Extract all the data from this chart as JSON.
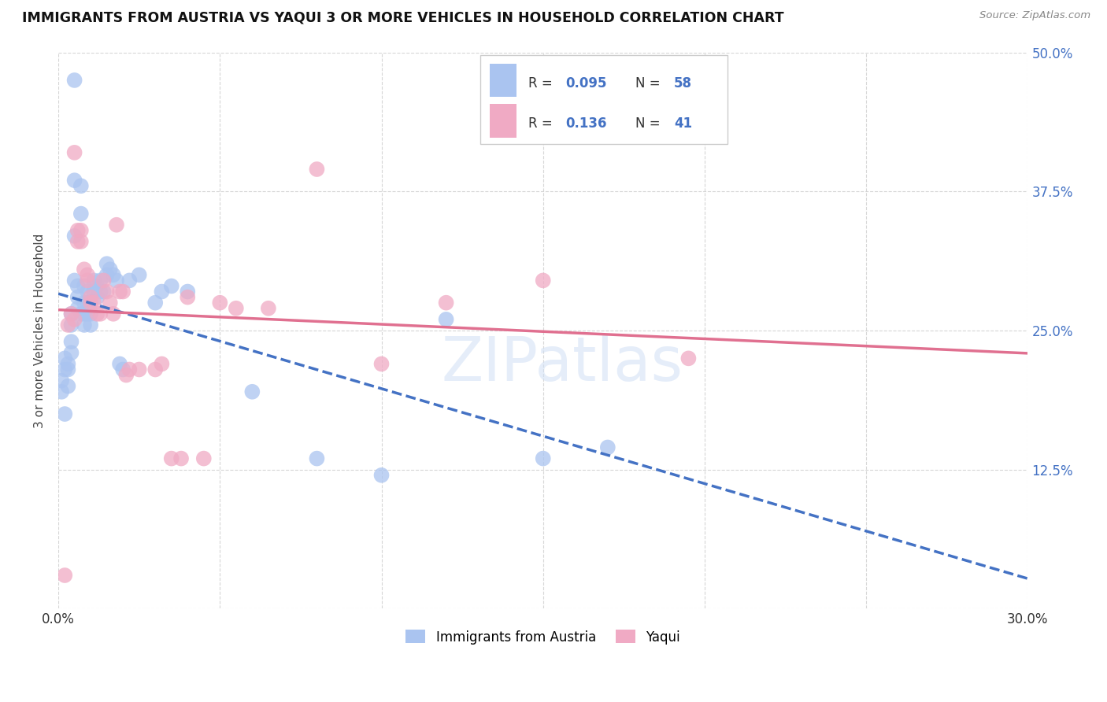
{
  "title": "IMMIGRANTS FROM AUSTRIA VS YAQUI 3 OR MORE VEHICLES IN HOUSEHOLD CORRELATION CHART",
  "source": "Source: ZipAtlas.com",
  "ylabel_label": "3 or more Vehicles in Household",
  "x_min": 0.0,
  "x_max": 0.3,
  "y_min": 0.0,
  "y_max": 0.5,
  "austria_color": "#aac4f0",
  "yaqui_color": "#f0aac4",
  "austria_line_color": "#4472c4",
  "yaqui_line_color": "#e07090",
  "watermark": "ZIPatlas",
  "R_austria": "0.095",
  "N_austria": "58",
  "R_yaqui": "0.136",
  "N_yaqui": "41",
  "austria_x": [
    0.001,
    0.001,
    0.002,
    0.002,
    0.002,
    0.003,
    0.003,
    0.003,
    0.004,
    0.004,
    0.004,
    0.004,
    0.005,
    0.005,
    0.005,
    0.005,
    0.006,
    0.006,
    0.006,
    0.007,
    0.007,
    0.007,
    0.008,
    0.008,
    0.008,
    0.008,
    0.009,
    0.009,
    0.009,
    0.01,
    0.01,
    0.01,
    0.011,
    0.011,
    0.012,
    0.012,
    0.013,
    0.013,
    0.014,
    0.015,
    0.015,
    0.016,
    0.017,
    0.018,
    0.019,
    0.02,
    0.022,
    0.025,
    0.03,
    0.032,
    0.035,
    0.04,
    0.06,
    0.08,
    0.1,
    0.12,
    0.15,
    0.17
  ],
  "austria_y": [
    0.205,
    0.195,
    0.175,
    0.215,
    0.225,
    0.22,
    0.215,
    0.2,
    0.265,
    0.255,
    0.24,
    0.23,
    0.475,
    0.385,
    0.335,
    0.295,
    0.29,
    0.28,
    0.27,
    0.38,
    0.355,
    0.265,
    0.29,
    0.275,
    0.265,
    0.255,
    0.285,
    0.275,
    0.265,
    0.275,
    0.265,
    0.255,
    0.295,
    0.285,
    0.29,
    0.28,
    0.295,
    0.285,
    0.285,
    0.31,
    0.3,
    0.305,
    0.3,
    0.295,
    0.22,
    0.215,
    0.295,
    0.3,
    0.275,
    0.285,
    0.29,
    0.285,
    0.195,
    0.135,
    0.12,
    0.26,
    0.135,
    0.145
  ],
  "yaqui_x": [
    0.002,
    0.003,
    0.004,
    0.005,
    0.006,
    0.006,
    0.007,
    0.007,
    0.008,
    0.009,
    0.009,
    0.01,
    0.01,
    0.011,
    0.012,
    0.013,
    0.014,
    0.015,
    0.016,
    0.017,
    0.018,
    0.019,
    0.02,
    0.021,
    0.022,
    0.025,
    0.03,
    0.032,
    0.035,
    0.038,
    0.04,
    0.045,
    0.05,
    0.055,
    0.065,
    0.08,
    0.1,
    0.12,
    0.15,
    0.195,
    0.005
  ],
  "yaqui_y": [
    0.03,
    0.255,
    0.265,
    0.26,
    0.34,
    0.33,
    0.34,
    0.33,
    0.305,
    0.3,
    0.295,
    0.28,
    0.275,
    0.275,
    0.265,
    0.265,
    0.295,
    0.285,
    0.275,
    0.265,
    0.345,
    0.285,
    0.285,
    0.21,
    0.215,
    0.215,
    0.215,
    0.22,
    0.135,
    0.135,
    0.28,
    0.135,
    0.275,
    0.27,
    0.27,
    0.395,
    0.22,
    0.275,
    0.295,
    0.225,
    0.41
  ]
}
